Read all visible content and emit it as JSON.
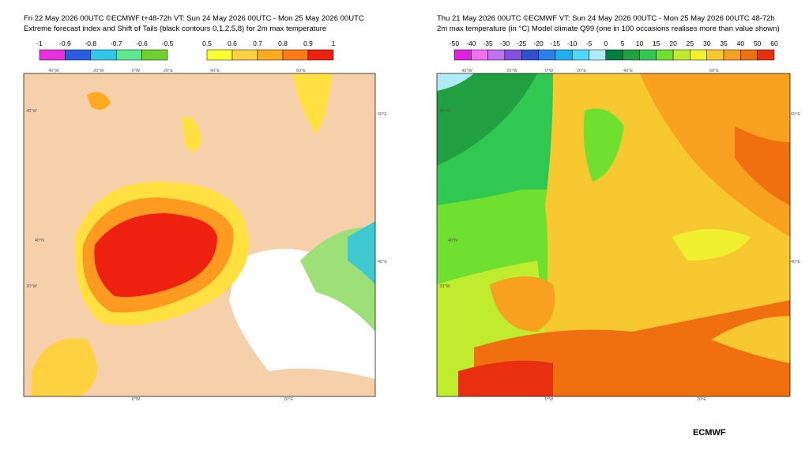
{
  "left_panel": {
    "title_lines": [
      "Fri 22 May 2026 00UTC ©ECMWF t+48-72h  VT: Sun 24 May 2026 00UTC - Mon 25 May 2026 00UTC",
      "Extreme forecast index and Shift of Tails (black contours 0,1,2,5,8) for 2m max temperature"
    ],
    "colorbars": [
      {
        "labels": [
          "-1",
          "-0.9",
          "-0.8",
          "-0.7",
          "-0.6",
          "-0.5"
        ],
        "colors": [
          "#e830e0",
          "#2a5ce0",
          "#30c8e8",
          "#60e890",
          "#70d030"
        ]
      },
      {
        "labels": [
          "0.5",
          "0.6",
          "0.7",
          "0.8",
          "0.9",
          "1"
        ],
        "colors": [
          "#ffff30",
          "#ffd040",
          "#ffaa20",
          "#ff7a10",
          "#ee2010"
        ]
      }
    ],
    "map_labels": [
      "40°W",
      "20°W",
      "0°W",
      "20°E",
      "40°E",
      "60°E",
      "40°W",
      "20°W",
      "0°W",
      "20°E",
      "40°N",
      "60°E",
      "40°E"
    ]
  },
  "right_panel": {
    "title_lines": [
      "Thu 21 May 2026 00UTC ©ECMWF VT: Sun 24 May 2026 00UTC - Mon 25 May 2026 00UTC   48-72h",
      "2m max temperature (in °C)  Model climate Q99 (one in 100 occasions realises more than value shown)"
    ],
    "colorbars": [
      {
        "labels": [
          "-50",
          "-40",
          "-35",
          "-30",
          "-25",
          "-20",
          "-15",
          "-10",
          "-5",
          "0",
          "5",
          "10",
          "15",
          "20",
          "25",
          "30",
          "35",
          "40",
          "50",
          "60"
        ],
        "colors": [
          "#e020e0",
          "#f070f0",
          "#c070f0",
          "#8050e0",
          "#3050d0",
          "#2880e8",
          "#20b0f0",
          "#50d8f8",
          "#b0ecf8",
          "#008040",
          "#20a040",
          "#30c850",
          "#70e030",
          "#c0ec30",
          "#f0f030",
          "#f8c830",
          "#f8a020",
          "#f07010",
          "#e83010"
        ]
      }
    ],
    "map_labels": [
      "40°W",
      "20°W",
      "0°W",
      "20°E",
      "40°E",
      "60°E",
      "40°W",
      "20°W",
      "0°W",
      "20°E",
      "40°N",
      "60°E",
      "40°E"
    ]
  },
  "footer": "ECMWF"
}
